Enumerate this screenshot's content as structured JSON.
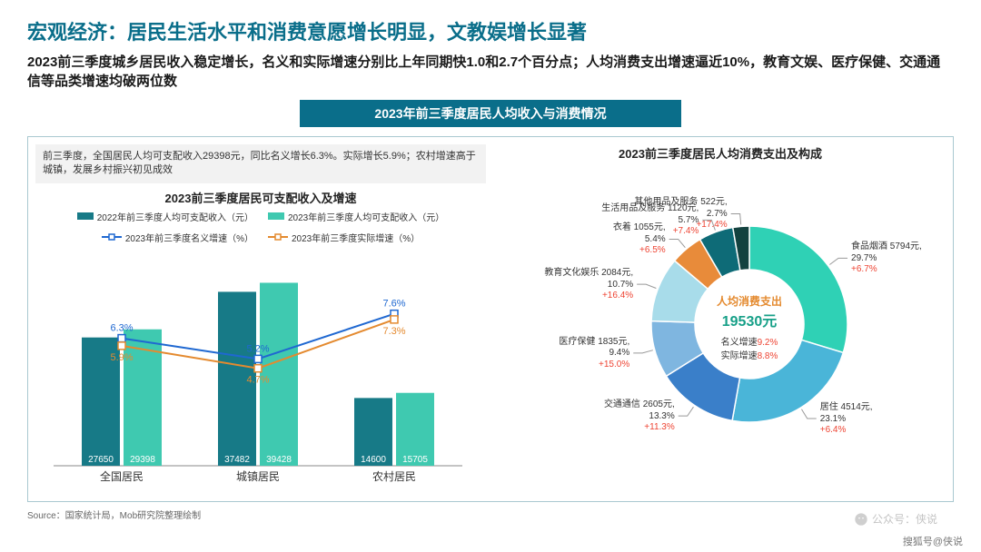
{
  "title": "宏观经济：居民生活水平和消费意愿增长明显，文教娱增长显著",
  "subtitle": "2023前三季度城乡居民收入稳定增长，名义和实际增速分别比上年同期快1.0和2.7个百分点；人均消费支出增速逼近10%，教育文娱、医疗保健、交通通信等品类增速均破两位数",
  "banner": "2023年前三季度居民人均收入与消费情况",
  "note": "前三季度，全国居民人均可支配收入29398元，同比名义增长6.3%。实际增长5.9%；农村增速高于城镇，发展乡村振兴初见成效",
  "bar_chart": {
    "type": "grouped-bar-with-lines",
    "title": "2023前三季度居民可支配收入及增速",
    "legend": {
      "bar2022": "2022年前三季度人均可支配收入（元）",
      "bar2023": "2023年前三季度人均可支配收入（元）",
      "lineNominal": "2023年前三季度名义增速（%）",
      "lineReal": "2023年前三季度实际增速（%）"
    },
    "colors": {
      "bar2022": "#177a87",
      "bar2023": "#3fc9b0",
      "lineNominal": "#1f68d1",
      "lineReal": "#e48a2f",
      "gridline": "#d8d8d8",
      "axis": "#888"
    },
    "categories": [
      "全国居民",
      "城镇居民",
      "农村居民"
    ],
    "values2022": [
      27650,
      37482,
      14600
    ],
    "values2023": [
      29398,
      39428,
      15705
    ],
    "nominal_growth": [
      6.3,
      5.2,
      7.6
    ],
    "real_growth": [
      5.9,
      4.7,
      7.3
    ],
    "ylim_bar": [
      0,
      45000
    ],
    "ylim_line": [
      0,
      10
    ],
    "bar_width": 0.35
  },
  "pie_chart": {
    "type": "donut",
    "title": "2023前三季度居民人均消费支出及构成",
    "center_title": "人均消费支出",
    "center_value": "19530元",
    "center_line1": "名义增速9.2%",
    "center_line2": "实际增速8.8%",
    "center_color": "#e48a2f",
    "slices": [
      {
        "name": "食品烟酒",
        "value": 5794,
        "pct": 29.7,
        "growth": "+6.7%",
        "color": "#2fd1b5"
      },
      {
        "name": "居住",
        "value": 4514,
        "pct": 23.1,
        "growth": "+6.4%",
        "color": "#4ab5d8"
      },
      {
        "name": "交通通信",
        "value": 2605,
        "pct": 13.3,
        "growth": "+11.3%",
        "color": "#3a7fc9"
      },
      {
        "name": "医疗保健",
        "value": 1835,
        "pct": 9.4,
        "growth": "+15.0%",
        "color": "#7fb6e0"
      },
      {
        "name": "教育文化娱乐",
        "value": 2084,
        "pct": 10.7,
        "growth": "+16.4%",
        "color": "#a8dcea"
      },
      {
        "name": "衣着",
        "value": 1055,
        "pct": 5.4,
        "growth": "+6.5%",
        "color": "#e88b3a"
      },
      {
        "name": "生活用品及服务",
        "value": 1120,
        "pct": 5.7,
        "growth": "+7.4%",
        "color": "#0e6b77"
      },
      {
        "name": "其他用品及服务",
        "value": 522,
        "pct": 2.7,
        "growth": "+17.4%",
        "color": "#13423f"
      }
    ],
    "inner_radius": 60,
    "outer_radius": 108,
    "bg": "#ffffff"
  },
  "source": "Source：国家统计局，Mob研究院整理绘制",
  "wechat": "公众号：侠说",
  "footer": "搜狐号@侠说"
}
